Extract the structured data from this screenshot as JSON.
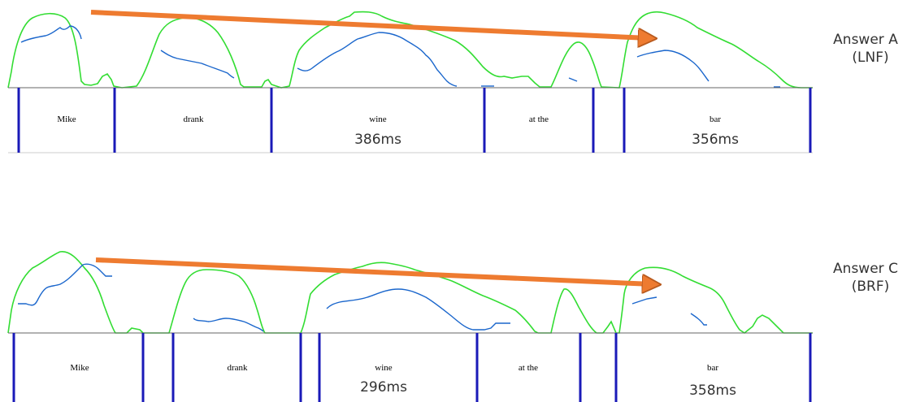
{
  "colors": {
    "intensity": "#33dd33",
    "pitch": "#1a66cc",
    "boundary": "#1a1ab8",
    "arrow": "#ee7b30",
    "baseline": "#666666"
  },
  "panels": [
    {
      "label_line1": "Answer A",
      "label_line2": "(LNF)",
      "words": [
        {
          "text": "Mike",
          "duration": ""
        },
        {
          "text": "drank",
          "duration": ""
        },
        {
          "text": "wine",
          "duration": "386ms"
        },
        {
          "text": "at the",
          "duration": ""
        },
        {
          "text": "bar",
          "duration": "356ms"
        }
      ]
    },
    {
      "label_line1": "Answer C",
      "label_line2": "(BRF)",
      "words": [
        {
          "text": "Mike",
          "duration": ""
        },
        {
          "text": "drank",
          "duration": ""
        },
        {
          "text": "wine",
          "duration": "296ms"
        },
        {
          "text": "at the",
          "duration": ""
        },
        {
          "text": "bar",
          "duration": "358ms"
        }
      ]
    }
  ]
}
